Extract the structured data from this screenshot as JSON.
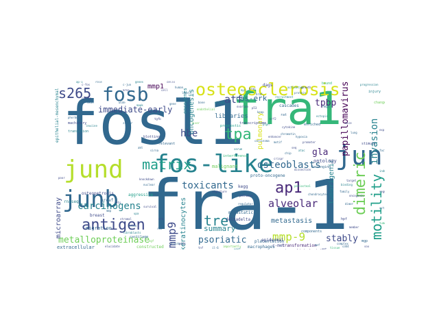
{
  "words": [
    {
      "text": "fosl1",
      "color": "#31688e"
    },
    {
      "text": "fra-1",
      "color": "#31688e"
    },
    {
      "text": "fra1",
      "color": "#35b779"
    },
    {
      "text": "jund",
      "color": "#b5de2b"
    },
    {
      "text": "fos-like",
      "color": "#26828e"
    },
    {
      "text": "junb",
      "color": "#31688e"
    },
    {
      "text": "jun",
      "color": "#31688e"
    },
    {
      "text": "fosb",
      "color": "#31688e"
    },
    {
      "text": "osteosclerosis",
      "color": "#d8e219"
    },
    {
      "text": "antigen",
      "color": "#3e4a89"
    },
    {
      "text": "s265",
      "color": "#3e4a89"
    },
    {
      "text": "matrix",
      "color": "#1f9e89"
    },
    {
      "text": "dimeric",
      "color": "#6ece58"
    },
    {
      "text": "motility",
      "color": "#1f9e89"
    },
    {
      "text": "tpa",
      "color": "#35b779"
    },
    {
      "text": "ap1",
      "color": "#482878"
    },
    {
      "text": "tre",
      "color": "#26828e"
    },
    {
      "text": "mmp9",
      "color": "#3e4a89"
    },
    {
      "text": "mmp-9",
      "color": "#b5de2b"
    },
    {
      "text": "carcinogens",
      "color": "#26828e"
    },
    {
      "text": "toxicants",
      "color": "#31688e"
    },
    {
      "text": "alveolar",
      "color": "#482878"
    },
    {
      "text": "osteoblasts",
      "color": "#31688e"
    },
    {
      "text": "metalloproteinase",
      "color": "#6ece58"
    },
    {
      "text": "psoriatic",
      "color": "#31688e"
    },
    {
      "text": "stably",
      "color": "#3e4a89"
    },
    {
      "text": "invasion",
      "color": "#26828e"
    },
    {
      "text": "papillomavirus",
      "color": "#440154"
    },
    {
      "text": "atf",
      "color": "#3e4a89"
    },
    {
      "text": "hbe",
      "color": "#3e4a89"
    },
    {
      "text": "gla",
      "color": "#482878"
    },
    {
      "text": "tpbp",
      "color": "#482878"
    },
    {
      "text": "immediate-early",
      "color": "#3e4a89"
    },
    {
      "text": "ras-erk",
      "color": "#31688e"
    },
    {
      "text": "oncogenesis",
      "color": "#26828e"
    },
    {
      "text": "metastasis",
      "color": "#31688e"
    },
    {
      "text": "keratinocytes",
      "color": "#26828e"
    },
    {
      "text": "microarray",
      "color": "#3e4a89"
    },
    {
      "text": "summary",
      "color": "#26828e"
    },
    {
      "text": "tumorigenic",
      "color": "#26828e"
    },
    {
      "text": "mmp1",
      "color": "#440154"
    },
    {
      "text": "pulmonary",
      "color": "#d8e219"
    },
    {
      "text": "libraries",
      "color": "#31688e"
    },
    {
      "text": "oncogenes",
      "color": "#26828e"
    },
    {
      "text": "ontology",
      "color": "#3e4a89"
    },
    {
      "text": "migration",
      "color": "#31688e"
    },
    {
      "text": "extracellular",
      "color": "#31688e"
    },
    {
      "text": "transformation",
      "color": "#482878"
    },
    {
      "text": "macrophages",
      "color": "#31688e"
    },
    {
      "text": "placentation",
      "color": "#31688e"
    },
    {
      "text": "c-met",
      "color": "#3e4a89"
    },
    {
      "text": "malignant",
      "color": "#6ece58"
    },
    {
      "text": "deltadelta",
      "color": "#3e4a89"
    },
    {
      "text": "metastatic",
      "color": "#31688e"
    },
    {
      "text": "proto-oncogene",
      "color": "#31688e"
    },
    {
      "text": "osteopetrosis",
      "color": "#3e4a89"
    },
    {
      "text": "aggressive",
      "color": "#1f9e89"
    },
    {
      "text": "epidermal",
      "color": "#3e4a89"
    },
    {
      "text": "immunohistochemistry",
      "color": "#482878"
    },
    {
      "text": "transcriptome",
      "color": "#3e4a89"
    },
    {
      "text": "cascades",
      "color": "#31688e"
    },
    {
      "text": "components",
      "color": "#31688e"
    },
    {
      "text": "prognostic",
      "color": "#1f9e89"
    },
    {
      "text": "interference",
      "color": "#35b779"
    },
    {
      "text": "kegg",
      "color": "#3e4a89"
    },
    {
      "text": "epithelial-mesenchymal",
      "color": "#26828e"
    },
    {
      "text": "cartilage",
      "color": "#31688e"
    },
    {
      "text": "constructed",
      "color": "#6ece58"
    },
    {
      "text": "breast",
      "color": "#3e4a89"
    },
    {
      "text": "rnaseq",
      "color": "#26828e"
    },
    {
      "text": "prcaf",
      "color": "#31688e"
    },
    {
      "text": "machinery",
      "color": "#3e4a89"
    },
    {
      "text": "transition",
      "color": "#26828e"
    },
    {
      "text": "blotting",
      "color": "#3e4a89"
    },
    {
      "text": "relevant",
      "color": "#31688e"
    },
    {
      "text": "stimuli",
      "color": "#3e4a89"
    },
    {
      "text": "changes",
      "color": "#6ece58"
    },
    {
      "text": "injury",
      "color": "#26828e"
    },
    {
      "text": "enriched",
      "color": "#31688e"
    },
    {
      "text": "hpf",
      "color": "#3e4a89"
    },
    {
      "text": "mgp",
      "color": "#31688e"
    },
    {
      "text": "rat",
      "color": "#31688e"
    },
    {
      "text": "bound",
      "color": "#35b779"
    },
    {
      "text": "belonging",
      "color": "#31688e"
    },
    {
      "text": "dags",
      "color": "#3e4a89"
    },
    {
      "text": "fegl",
      "color": "#31688e"
    },
    {
      "text": "elucidate",
      "color": "#3e4a89"
    },
    {
      "text": "importantly",
      "color": "#6ece58"
    },
    {
      "text": "blocked",
      "color": "#31688e"
    },
    {
      "text": "pi3k",
      "color": "#3e4a89"
    },
    {
      "text": "akt",
      "color": "#31688e"
    },
    {
      "text": "survival",
      "color": "#3e4a89"
    },
    {
      "text": "recruitment",
      "color": "#26828e"
    },
    {
      "text": "wide",
      "color": "#31688e"
    },
    {
      "text": "tgfb",
      "color": "#3e4a89"
    },
    {
      "text": "gene",
      "color": "#31688e"
    },
    {
      "text": "poor",
      "color": "#3e4a89"
    },
    {
      "text": "periosteal",
      "color": "#35b779"
    },
    {
      "text": "chondrocytes",
      "color": "#31688e"
    },
    {
      "text": "dissection",
      "color": "#3e4a89"
    },
    {
      "text": "phorbol",
      "color": "#31688e"
    },
    {
      "text": "leucine",
      "color": "#26828e"
    },
    {
      "text": "zipper",
      "color": "#31688e"
    },
    {
      "text": "stromal",
      "color": "#3e4a89"
    },
    {
      "text": "colon",
      "color": "#31688e"
    },
    {
      "text": "fibroblasts",
      "color": "#26828e"
    },
    {
      "text": "nuclear",
      "color": "#31688e"
    },
    {
      "text": "knockdown",
      "color": "#3e4a89"
    },
    {
      "text": "sirna",
      "color": "#31688e"
    },
    {
      "text": "endothelial",
      "color": "#6ece58"
    },
    {
      "text": "ovarian",
      "color": "#3e4a89"
    },
    {
      "text": "glioma",
      "color": "#26828e"
    },
    {
      "text": "bone",
      "color": "#31688e"
    },
    {
      "text": "mice",
      "color": "#3e4a89"
    },
    {
      "text": "lung",
      "color": "#31688e"
    },
    {
      "text": "progression",
      "color": "#26828e"
    },
    {
      "text": "oncogenic",
      "color": "#3e4a89"
    },
    {
      "text": "dimer",
      "color": "#31688e"
    },
    {
      "text": "target",
      "color": "#3e4a89"
    },
    {
      "text": "binding",
      "color": "#26828e"
    },
    {
      "text": "family",
      "color": "#31688e"
    },
    {
      "text": "member",
      "color": "#3e4a89"
    },
    {
      "text": "complex",
      "color": "#31688e"
    },
    {
      "text": "tissue",
      "color": "#35b779"
    },
    {
      "text": "promoter",
      "color": "#3e4a89"
    },
    {
      "text": "hypoxia",
      "color": "#31688e"
    },
    {
      "text": "ectopic",
      "color": "#26828e"
    },
    {
      "text": "cytokine",
      "color": "#3e4a89"
    },
    {
      "text": "carcinoma",
      "color": "#31688e"
    },
    {
      "text": "serum",
      "color": "#26828e"
    },
    {
      "text": "signature",
      "color": "#3e4a89"
    },
    {
      "text": "regulator",
      "color": "#31688e"
    },
    {
      "text": "pathways",
      "color": "#3e4a89"
    },
    {
      "text": "wnt",
      "color": "#31688e"
    },
    {
      "text": "mapk",
      "color": "#26828e"
    },
    {
      "text": "cyclin",
      "color": "#3e4a89"
    },
    {
      "text": "skin",
      "color": "#31688e"
    },
    {
      "text": "liver",
      "color": "#6ece58"
    },
    {
      "text": "expression",
      "color": "#3e4a89"
    },
    {
      "text": "factors",
      "color": "#31688e"
    },
    {
      "text": "induced",
      "color": "#26828e"
    },
    {
      "text": "regulation",
      "color": "#3e4a89"
    },
    {
      "text": "activity",
      "color": "#31688e"
    },
    {
      "text": "tumour",
      "color": "#35b779"
    },
    {
      "text": "growth",
      "color": "#3e4a89"
    },
    {
      "text": "protein",
      "color": "#31688e"
    },
    {
      "text": "activation",
      "color": "#26828e"
    },
    {
      "text": "cells",
      "color": "#3e4a89"
    },
    {
      "text": "human",
      "color": "#31688e"
    },
    {
      "text": "cell",
      "color": "#3e4a89"
    },
    {
      "text": "levels",
      "color": "#31688e"
    },
    {
      "text": "genes",
      "color": "#26828e"
    },
    {
      "text": "mrna",
      "color": "#3e4a89"
    },
    {
      "text": "role",
      "color": "#31688e"
    },
    {
      "text": "ap-1",
      "color": "#26828e"
    },
    {
      "text": "c-fos",
      "color": "#3e4a89"
    },
    {
      "text": "c-jun",
      "color": "#31688e"
    },
    {
      "text": "ets",
      "color": "#3e4a89"
    },
    {
      "text": "mmp",
      "color": "#31688e"
    },
    {
      "text": "upa",
      "color": "#26828e"
    },
    {
      "text": "erk",
      "color": "#3e4a89"
    },
    {
      "text": "ras",
      "color": "#31688e"
    },
    {
      "text": "egf",
      "color": "#6ece58"
    },
    {
      "text": "tnf",
      "color": "#3e4a89"
    },
    {
      "text": "il-6",
      "color": "#31688e"
    },
    {
      "text": "vegf",
      "color": "#26828e"
    },
    {
      "text": "emt",
      "color": "#3e4a89"
    },
    {
      "text": "mef",
      "color": "#31688e"
    },
    {
      "text": "sox",
      "color": "#3e4a89"
    },
    {
      "text": "cd44",
      "color": "#31688e"
    },
    {
      "text": "nfat",
      "color": "#26828e"
    },
    {
      "text": "crispr",
      "color": "#3e4a89"
    },
    {
      "text": "chip",
      "color": "#31688e"
    },
    {
      "text": "seq",
      "color": "#3e4a89"
    },
    {
      "text": "atac",
      "color": "#26828e"
    },
    {
      "text": "motif",
      "color": "#31688e"
    },
    {
      "text": "enhancer",
      "color": "#3e4a89"
    },
    {
      "text": "chromatin",
      "color": "#31688e"
    },
    {
      "text": "ptpn",
      "color": "#26828e"
    },
    {
      "text": "nrf2",
      "color": "#3e4a89"
    },
    {
      "text": "keap",
      "color": "#31688e"
    },
    {
      "text": "p53",
      "color": "#3e4a89"
    },
    {
      "text": "rb",
      "color": "#31688e"
    },
    {
      "text": "myc",
      "color": "#26828e"
    },
    {
      "text": "kras",
      "color": "#3e4a89"
    },
    {
      "text": "braf",
      "color": "#31688e"
    }
  ]
}
